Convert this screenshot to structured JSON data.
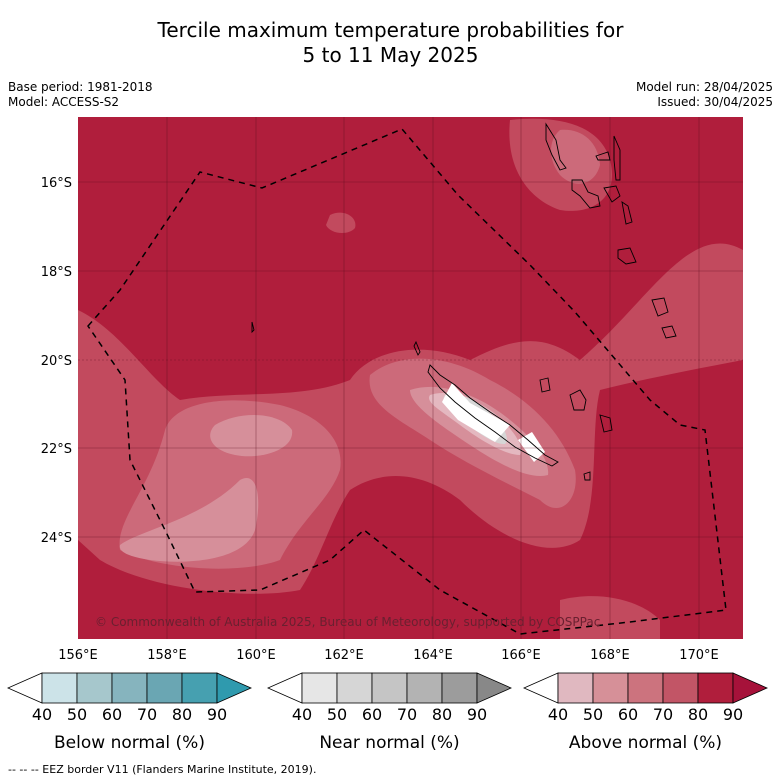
{
  "title_line1": "Tercile maximum temperature probabilities for",
  "title_line2": "5 to 11 May 2025",
  "base_period": "Base period: 1981-2018",
  "model": "Model: ACCESS-S2",
  "model_run": "Model run: 28/04/2025",
  "issued": "Issued: 30/04/2025",
  "credit": "© Commonwealth of Australia 2025, Bureau of Meteorology, supported by COSPPac",
  "map": {
    "lon_range": [
      154.6,
      171.0
    ],
    "lat_range": [
      -26.3,
      -14.5
    ],
    "lat_ticks": [
      "16°S",
      "18°S",
      "20°S",
      "22°S",
      "24°S"
    ],
    "lon_ticks": [
      "156°E",
      "158°E",
      "160°E",
      "162°E",
      "164°E",
      "166°E",
      "168°E",
      "170°E"
    ],
    "background_color": "#b01e3c"
  },
  "colorbars": [
    {
      "title": "Below normal (%)",
      "labels": [
        "40",
        "50",
        "60",
        "70",
        "80",
        "90"
      ],
      "colors": [
        "#ffffff",
        "#cce3e8",
        "#a6c7cc",
        "#86b4be",
        "#6aa6b3",
        "#46a0b0",
        "#2f9aae"
      ]
    },
    {
      "title": "Near normal (%)",
      "labels": [
        "40",
        "50",
        "60",
        "70",
        "80",
        "90"
      ],
      "colors": [
        "#ffffff",
        "#e6e6e6",
        "#d6d6d6",
        "#c5c5c5",
        "#b3b3b3",
        "#9c9c9c",
        "#888888"
      ]
    },
    {
      "title": "Above normal (%)",
      "labels": [
        "40",
        "50",
        "60",
        "70",
        "80",
        "90"
      ],
      "colors": [
        "#ffffff",
        "#e0b8c0",
        "#d69098",
        "#cc737e",
        "#c25566",
        "#b01e3c",
        "#a6123a"
      ]
    }
  ],
  "footnote": "--  --  -- EEZ border V11 (Flanders Marine Institute, 2019)."
}
